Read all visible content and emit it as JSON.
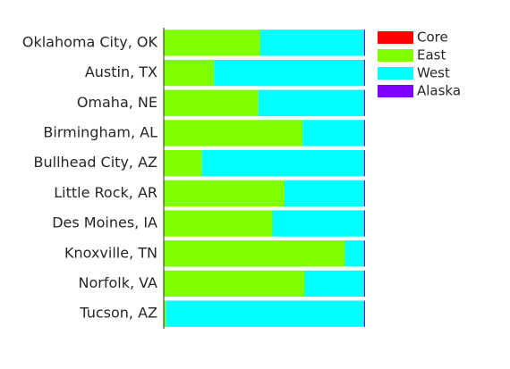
{
  "chart_data": {
    "type": "stacked-barh",
    "categories": [
      "Oklahoma City, OK",
      "Austin, TX",
      "Omaha, NE",
      "Birmingham, AL",
      "Bullhead City, AZ",
      "Little Rock, AR",
      "Des Moines, IA",
      "Knoxville, TN",
      "Norfolk, VA",
      "Tucson, AZ"
    ],
    "series": [
      {
        "name": "Core",
        "color": "#ff0000",
        "values": [
          0,
          0,
          0,
          0,
          0,
          0,
          0,
          0,
          0,
          0
        ]
      },
      {
        "name": "East",
        "color": "#80ff00",
        "values": [
          0.48,
          0.25,
          0.47,
          0.69,
          0.19,
          0.6,
          0.54,
          0.9,
          0.7,
          0.01
        ]
      },
      {
        "name": "West",
        "color": "#00ffff",
        "values": [
          0.515,
          0.745,
          0.525,
          0.305,
          0.805,
          0.395,
          0.455,
          0.095,
          0.295,
          0.985
        ]
      },
      {
        "name": "Alaska",
        "color": "#8000ff",
        "values": [
          0.005,
          0.005,
          0.005,
          0.005,
          0.005,
          0.005,
          0.005,
          0.005,
          0.005,
          0.005
        ]
      }
    ],
    "xlim": [
      0,
      1
    ],
    "legend": "upper right"
  }
}
